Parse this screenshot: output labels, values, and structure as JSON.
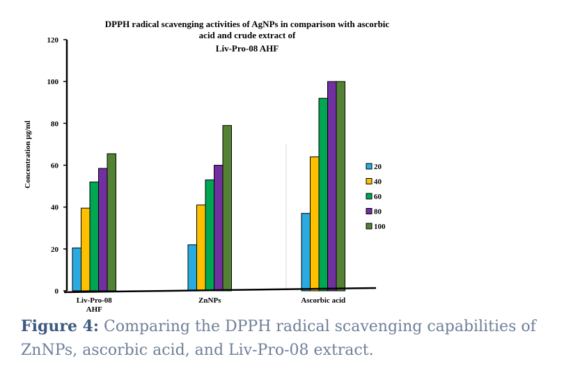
{
  "chart_data": {
    "type": "bar",
    "title_lines": [
      "DPPH radical scavenging activities of AgNPs in comparison with ascorbic",
      "acid and crude extract of",
      "Liv-Pro-08 AHF"
    ],
    "ylabel": "Concentration µg/ml",
    "xlabel": "",
    "ylim": [
      0,
      120
    ],
    "yticks": [
      0,
      20,
      40,
      60,
      80,
      100,
      120
    ],
    "categories": [
      [
        "Liv-Pro-08",
        "AHF"
      ],
      [
        "ZnNPs"
      ],
      [
        "Ascorbic acid"
      ]
    ],
    "series": [
      {
        "name": "20",
        "color": "#29abe2",
        "values": [
          20.5,
          22,
          37
        ]
      },
      {
        "name": "40",
        "color": "#ffc000",
        "values": [
          39.5,
          41,
          64
        ]
      },
      {
        "name": "60",
        "color": "#00a651",
        "values": [
          52,
          53,
          92
        ]
      },
      {
        "name": "80",
        "color": "#7030a0",
        "values": [
          58.5,
          60,
          100
        ]
      },
      {
        "name": "100",
        "color": "#548235",
        "values": [
          65.5,
          79,
          100
        ]
      }
    ],
    "legend_position": "right",
    "grid": false
  },
  "caption": {
    "label": "Figure 4:",
    "text": "Comparing the DPPH radical scavenging capabilities of ZnNPs, ascorbic acid, and Liv-Pro-08 extract."
  }
}
